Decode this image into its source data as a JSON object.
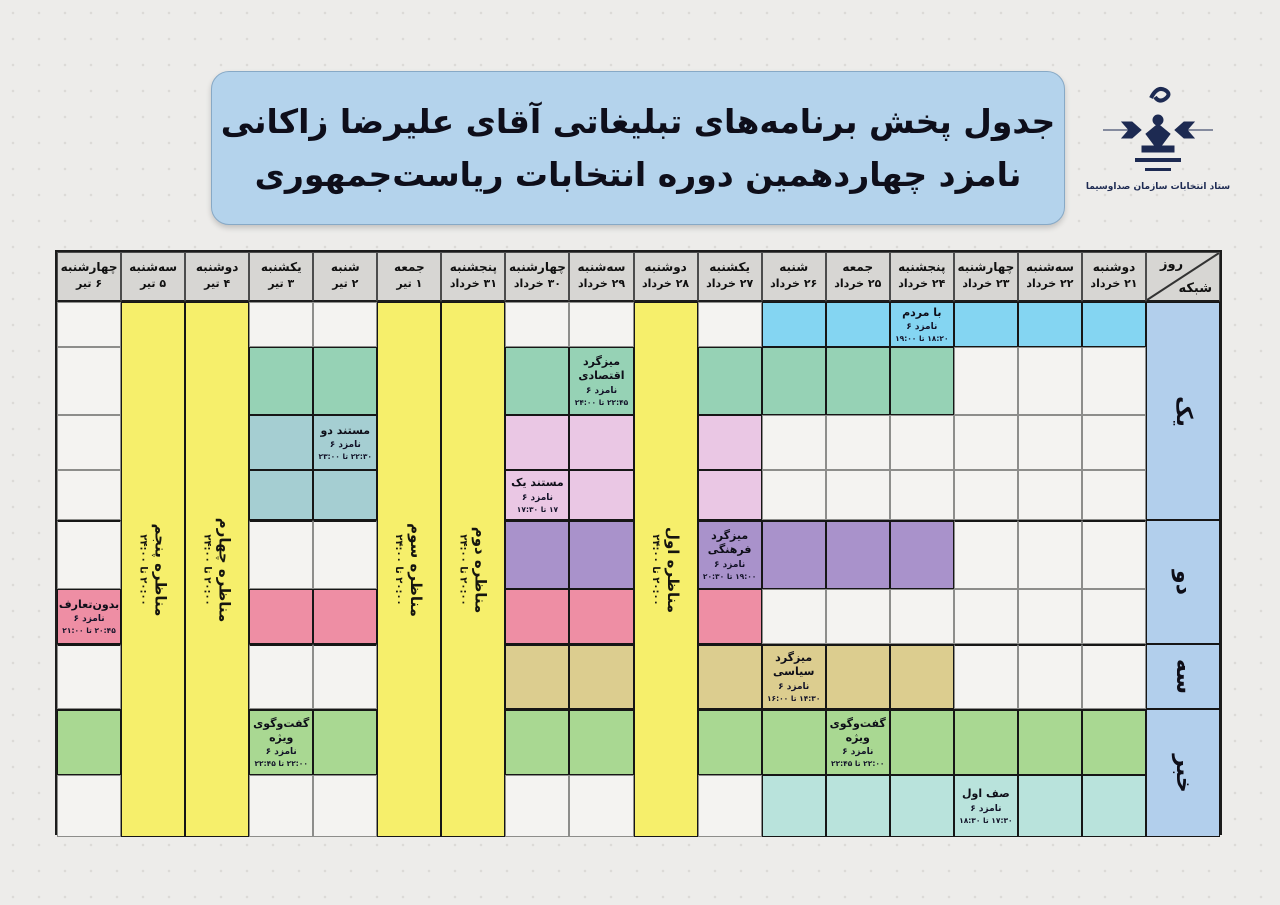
{
  "title": {
    "line1": "جدول پخش برنامه‌های تبلیغاتی آقای علیرضا زاکانی",
    "line2": "نامزد چهاردهمین دوره انتخابات ریاست‌جمهوری"
  },
  "logo": {
    "caption": "ستاد انتخابات سازمان صداوسیما"
  },
  "colors": {
    "w": "#f4f3f1",
    "cyan": "#84d5f2",
    "green2": "#96d2b5",
    "teal": "#a5ced2",
    "pinkl": "#eac7e4",
    "purple": "#a992cb",
    "pinkd": "#ee8ea4",
    "tan": "#dccd8f",
    "greenb": "#a9d892",
    "teall": "#b9e3dc",
    "yellow": "#f6ef6b",
    "header_bg": "#d7d6d3",
    "channel_bg": "#b2cfec",
    "title_bg": "#b4d3ec"
  },
  "table": {
    "corner": {
      "top": "روز",
      "bottom": "شبکه"
    },
    "days": [
      {
        "name": "دوشنبه",
        "date": "۲۱ خرداد"
      },
      {
        "name": "سه‌شنبه",
        "date": "۲۲ خرداد"
      },
      {
        "name": "چهارشنبه",
        "date": "۲۳ خرداد"
      },
      {
        "name": "پنجشنبه",
        "date": "۲۴ خرداد"
      },
      {
        "name": "جمعه",
        "date": "۲۵ خرداد"
      },
      {
        "name": "شنبه",
        "date": "۲۶ خرداد"
      },
      {
        "name": "یکشنبه",
        "date": "۲۷ خرداد"
      },
      {
        "name": "دوشنبه",
        "date": "۲۸ خرداد"
      },
      {
        "name": "سه‌شنبه",
        "date": "۲۹ خرداد"
      },
      {
        "name": "چهارشنبه",
        "date": "۳۰ خرداد"
      },
      {
        "name": "پنجشنبه",
        "date": "۳۱ خرداد"
      },
      {
        "name": "جمعه",
        "date": "۱ تیر"
      },
      {
        "name": "شنبه",
        "date": "۲ تیر"
      },
      {
        "name": "یکشنبه",
        "date": "۳ تیر"
      },
      {
        "name": "دوشنبه",
        "date": "۴ تیر"
      },
      {
        "name": "سه‌شنبه",
        "date": "۵ تیر"
      },
      {
        "name": "چهارشنبه",
        "date": "۶ تیر"
      }
    ],
    "channels": [
      {
        "id": "yek",
        "label": "یک",
        "row_start": 1,
        "row_span": 4
      },
      {
        "id": "do",
        "label": "دو",
        "row_start": 5,
        "row_span": 2
      },
      {
        "id": "se",
        "label": "سه",
        "row_start": 7,
        "row_span": 1
      },
      {
        "id": "khabar",
        "label": "خبر",
        "row_start": 8,
        "row_span": 2
      }
    ],
    "debates": [
      {
        "id": "monazere-1",
        "col": 7,
        "title": "مناظره اول",
        "time": "۲۰:۰۰ تا ۲۴:۰۰"
      },
      {
        "id": "monazere-2",
        "col": 10,
        "title": "مناظره دوم",
        "time": "۲۰:۰۰ تا ۲۴:۰۰"
      },
      {
        "id": "monazere-3",
        "col": 11,
        "title": "مناظره سوم",
        "time": "۲۰:۰۰ تا ۲۴:۰۰"
      },
      {
        "id": "monazere-4",
        "col": 14,
        "title": "مناظره چهارم",
        "time": "۲۰:۰۰ تا ۲۴:۰۰"
      },
      {
        "id": "monazere-5",
        "col": 15,
        "title": "مناظره پنجم",
        "time": "۲۰:۰۰ تا ۲۴:۰۰"
      }
    ],
    "cells": [
      [
        "cyan",
        "cyan",
        "cyan",
        "cyan",
        "cyan",
        "cyan",
        "w",
        "-",
        "w",
        "w",
        "-",
        "-",
        "w",
        "w",
        "-",
        "-",
        "w"
      ],
      [
        "w",
        "w",
        "w",
        "green2",
        "green2",
        "green2",
        "green2",
        "-",
        "green2",
        "green2",
        "-",
        "-",
        "green2",
        "green2",
        "-",
        "-",
        "w"
      ],
      [
        "w",
        "w",
        "w",
        "w",
        "w",
        "w",
        "pinkl",
        "-",
        "pinkl",
        "pinkl",
        "-",
        "-",
        "teal",
        "teal",
        "-",
        "-",
        "w"
      ],
      [
        "w",
        "w",
        "w",
        "w",
        "w",
        "w",
        "pinkl",
        "-",
        "pinkl",
        "pinkl",
        "-",
        "-",
        "teal",
        "teal",
        "-",
        "-",
        "w"
      ],
      [
        "w",
        "w",
        "w",
        "purple",
        "purple",
        "purple",
        "purple",
        "-",
        "purple",
        "purple",
        "-",
        "-",
        "w",
        "w",
        "-",
        "-",
        "w"
      ],
      [
        "w",
        "w",
        "w",
        "w",
        "w",
        "w",
        "pinkd",
        "-",
        "pinkd",
        "pinkd",
        "-",
        "-",
        "pinkd",
        "pinkd",
        "-",
        "-",
        "pinkd"
      ],
      [
        "w",
        "w",
        "w",
        "tan",
        "tan",
        "tan",
        "tan",
        "-",
        "tan",
        "tan",
        "-",
        "-",
        "w",
        "w",
        "-",
        "-",
        "w"
      ],
      [
        "greenb",
        "greenb",
        "greenb",
        "greenb",
        "greenb",
        "greenb",
        "greenb",
        "-",
        "greenb",
        "greenb",
        "-",
        "-",
        "greenb",
        "greenb",
        "-",
        "-",
        "greenb"
      ],
      [
        "teall",
        "teall",
        "teall",
        "teall",
        "teall",
        "teall",
        "w",
        "-",
        "w",
        "w",
        "-",
        "-",
        "w",
        "w",
        "-",
        "-",
        "w"
      ]
    ],
    "programs": [
      {
        "id": "ba-mardom",
        "row": 1,
        "col": 3,
        "title": "با مردم",
        "sub": "نامزد ۶",
        "time": "۱۸:۲۰ تا ۱۹:۰۰"
      },
      {
        "id": "mizgerd-eghtesadi",
        "row": 2,
        "col": 8,
        "title": "میزگرد\nاقتصادی",
        "sub": "نامزد ۶",
        "time": "۲۲:۴۵ تا ۲۴:۰۰"
      },
      {
        "id": "mostanad-do",
        "row": 3,
        "col": 12,
        "title": "مستند دو",
        "sub": "نامزد ۶",
        "time": "۲۲:۳۰ تا ۲۳:۰۰"
      },
      {
        "id": "mostanad-yek",
        "row": 4,
        "col": 9,
        "title": "مستند یک",
        "sub": "نامزد ۶",
        "time": "۱۷ تا ۱۷:۳۰"
      },
      {
        "id": "mizgerd-farhangi",
        "row": 5,
        "col": 6,
        "title": "میزگرد\nفرهنگی",
        "sub": "نامزد ۶",
        "time": "۱۹:۰۰ تا ۲۰:۳۰"
      },
      {
        "id": "bedune-taarof",
        "row": 6,
        "col": 16,
        "title": "بدون‌تعارف",
        "sub": "نامزد ۶",
        "time": "۲۰:۴۵ تا ۲۱:۰۰"
      },
      {
        "id": "mizgerd-siasi",
        "row": 7,
        "col": 5,
        "title": "میزگرد\nسیاسی",
        "sub": "نامزد ۶",
        "time": "۱۴:۳۰ تا ۱۶:۰۰"
      },
      {
        "id": "goftogu-vizhe-1",
        "row": 8,
        "col": 4,
        "title": "گفت‌وگوی\nویژه",
        "sub": "نامزد ۶",
        "time": "۲۲:۰۰ تا ۲۲:۴۵"
      },
      {
        "id": "goftogu-vizhe-2",
        "row": 8,
        "col": 13,
        "title": "گفت‌وگوی\nویژه",
        "sub": "نامزد ۶",
        "time": "۲۲:۰۰ تا ۲۲:۴۵"
      },
      {
        "id": "saf-aval",
        "row": 9,
        "col": 2,
        "title": "صف اول",
        "sub": "نامزد ۶",
        "time": "۱۷:۳۰ تا ۱۸:۳۰"
      }
    ]
  }
}
